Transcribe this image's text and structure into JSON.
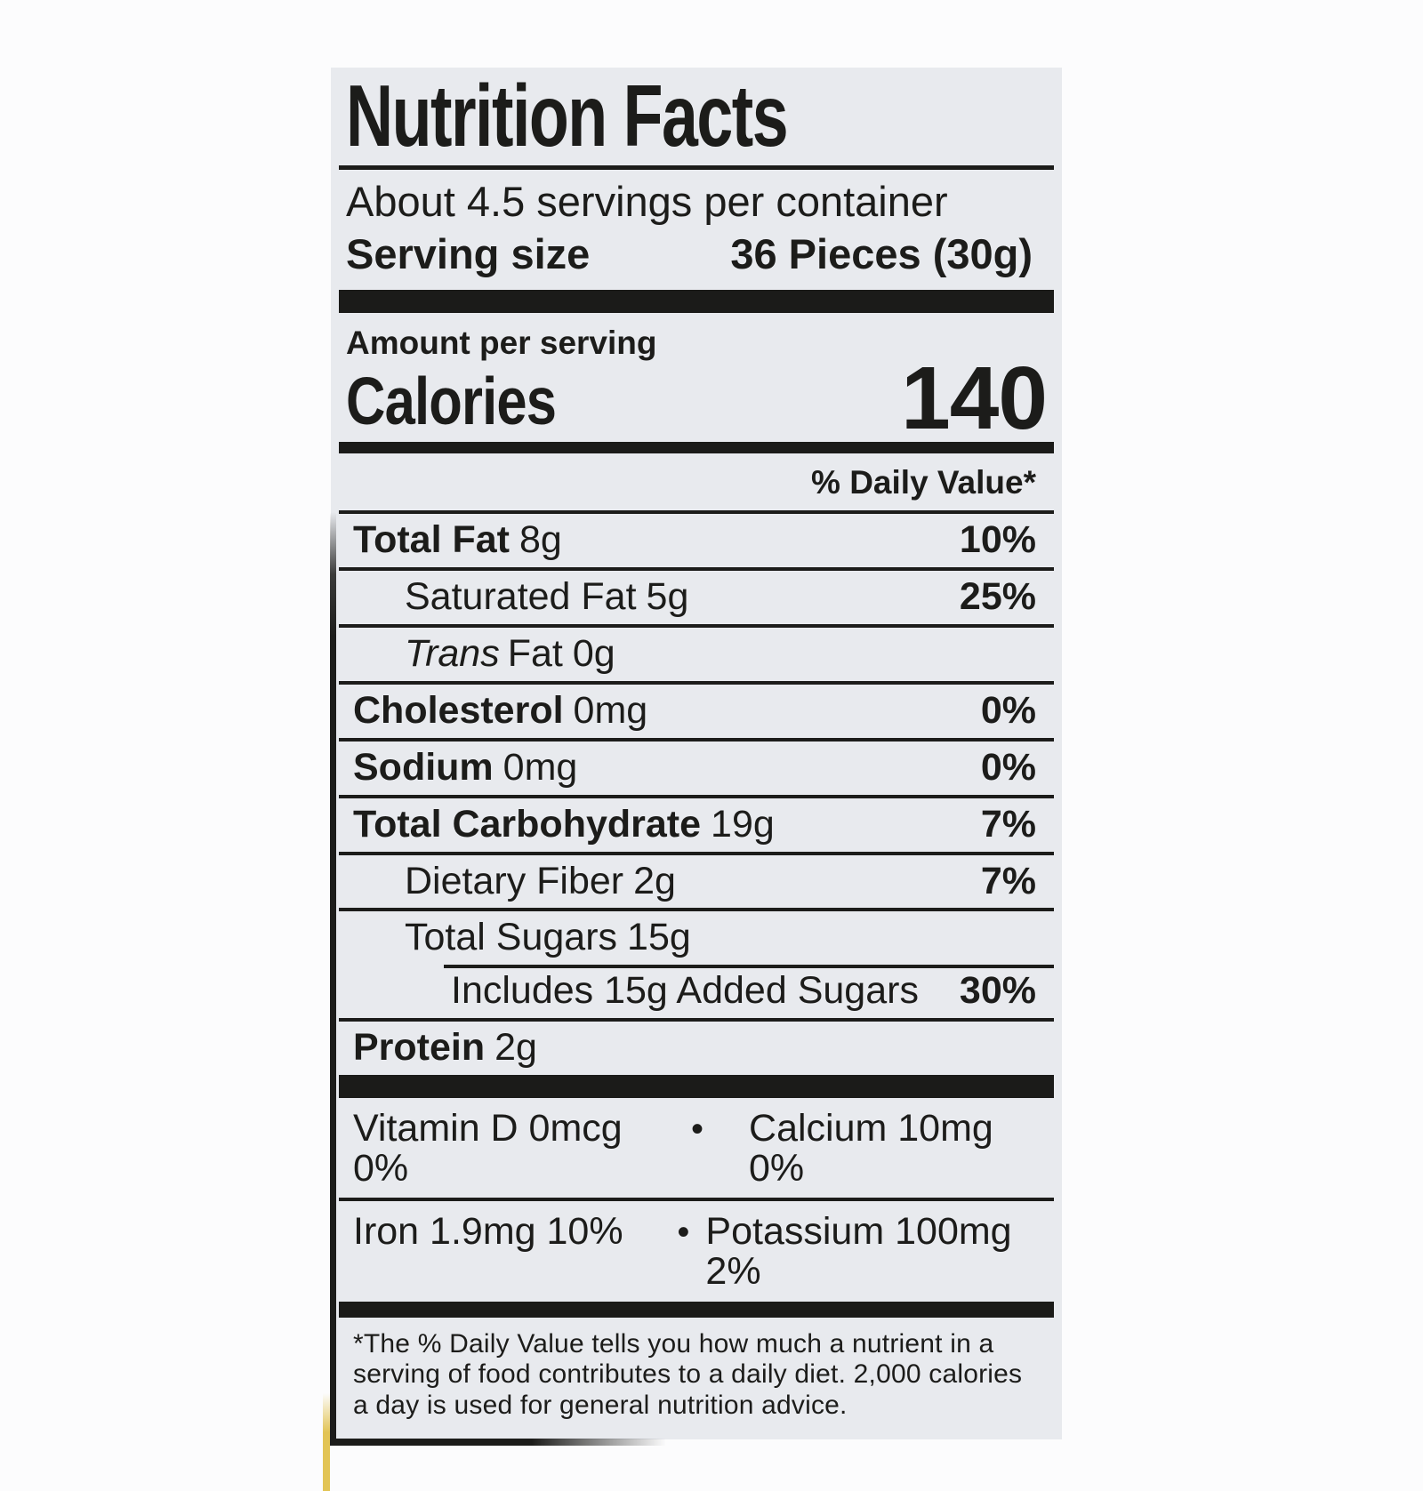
{
  "label": {
    "title": "Nutrition Facts",
    "servings_per_container": "About 4.5 servings per container",
    "serving_size": {
      "label": "Serving size",
      "value": "36 Pieces (30g)"
    },
    "amount_per_serving": "Amount per serving",
    "calories": {
      "label": "Calories",
      "value": "140"
    },
    "daily_value_header": "% Daily Value*",
    "rows": [
      {
        "name": "Total Fat",
        "amount": "8g",
        "dv": "10%"
      },
      {
        "name": "Saturated Fat",
        "amount": "5g",
        "dv": "25%"
      },
      {
        "name_italic": "Trans",
        "name": "Fat",
        "amount": "0g",
        "dv": ""
      },
      {
        "name": "Cholesterol",
        "amount": "0mg",
        "dv": "0%"
      },
      {
        "name": "Sodium",
        "amount": "0mg",
        "dv": "0%"
      },
      {
        "name": "Total Carbohydrate",
        "amount": "19g",
        "dv": "7%"
      },
      {
        "name": "Dietary Fiber",
        "amount": "2g",
        "dv": "7%"
      },
      {
        "name": "Total Sugars",
        "amount": "15g",
        "dv": ""
      },
      {
        "name": "Includes 15g Added Sugars",
        "amount": "",
        "dv": "30%"
      },
      {
        "name": "Protein",
        "amount": "2g",
        "dv": ""
      }
    ],
    "bullet": "•",
    "micronutrients": [
      {
        "left": "Vitamin D 0mcg 0%",
        "right": "Calcium 10mg 0%"
      },
      {
        "left": "Iron 1.9mg 10%",
        "right": "Potassium 100mg 2%"
      }
    ],
    "footnote_lines": [
      "*The % Daily Value tells you how much a nutrient in a",
      "serving of food contributes to a daily diet. 2,000 calories",
      "a day is used for general nutrition advice."
    ],
    "colors": {
      "label_bg": "#e8eaee",
      "ink": "#1c1c1a",
      "page_bg": "#fcfcfd",
      "edge_accent": "#e2c455"
    }
  }
}
